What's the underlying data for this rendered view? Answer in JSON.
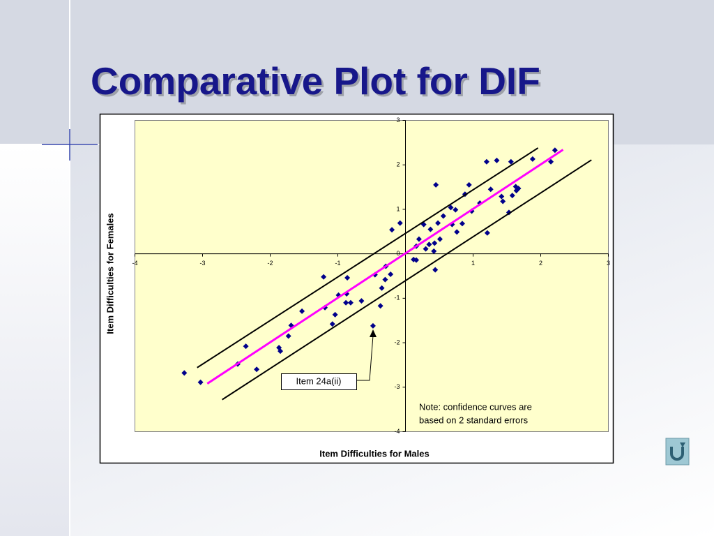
{
  "chart_data": {
    "type": "scatter",
    "title": "Comparative Plot for DIF",
    "x_label": "Item Difficulties for Males",
    "y_label": "Item Difficulties for Females",
    "xlim": [
      -4,
      3
    ],
    "ylim": [
      -4,
      3
    ],
    "xticks": [
      -4,
      -3,
      -2,
      -1,
      1,
      2,
      3
    ],
    "yticks": [
      -4,
      -3,
      -2,
      -1,
      0,
      1,
      2,
      3
    ],
    "series": [
      {
        "mode": "marker",
        "marker": "diamond",
        "color": "#00008b",
        "x": [
          -3.27,
          -3.03,
          -2.36,
          -2.48,
          -2.2,
          -1.87,
          -1.85,
          -1.73,
          -1.69,
          -1.53,
          -1.21,
          -1.19,
          -1.08,
          -1.04,
          -0.99,
          -0.86,
          -0.88,
          -0.81,
          -0.87,
          -0.65,
          -0.48,
          -0.45,
          -0.37,
          -0.35,
          -0.3,
          -0.29,
          -0.22,
          -0.2,
          -0.08,
          0.12,
          0.16,
          0.16,
          0.2,
          0.27,
          0.3,
          0.35,
          0.37,
          0.42,
          0.43,
          0.44,
          0.45,
          0.48,
          0.51,
          0.56,
          0.67,
          0.69,
          0.74,
          0.76,
          0.84,
          0.88,
          0.94,
          0.98,
          1.1,
          1.2,
          1.21,
          1.26,
          1.35,
          1.42,
          1.44,
          1.53,
          1.56,
          1.58,
          1.63,
          1.64,
          1.67,
          1.88,
          2.15,
          2.21
        ],
        "y": [
          -2.68,
          -2.89,
          -2.08,
          -2.48,
          -2.6,
          -2.11,
          -2.19,
          -1.85,
          -1.61,
          -1.29,
          -0.52,
          -1.21,
          -1.58,
          -1.37,
          -0.93,
          -0.54,
          -1.1,
          -1.1,
          -0.9,
          -1.06,
          -1.62,
          -0.47,
          -1.17,
          -0.77,
          -0.58,
          -0.28,
          -0.46,
          0.54,
          0.69,
          -0.13,
          -0.14,
          0.17,
          0.33,
          0.66,
          0.11,
          0.21,
          0.55,
          0.06,
          0.24,
          -0.36,
          1.55,
          0.69,
          0.33,
          0.85,
          1.04,
          0.66,
          0.99,
          0.49,
          0.68,
          1.34,
          1.55,
          0.96,
          1.14,
          2.07,
          0.47,
          1.45,
          2.1,
          1.29,
          1.18,
          0.93,
          2.07,
          1.31,
          1.51,
          1.42,
          1.47,
          2.13,
          2.07,
          2.33
        ]
      },
      {
        "mode": "line",
        "color": "#ff00ff",
        "width": 3,
        "x": [
          -2.93,
          2.33
        ],
        "y": [
          -2.92,
          2.34
        ]
      },
      {
        "mode": "line",
        "color": "#000000",
        "width": 2,
        "x": [
          -3.08,
          1.96
        ],
        "y": [
          -2.56,
          2.38
        ]
      },
      {
        "mode": "line",
        "color": "#000000",
        "width": 2,
        "x": [
          -2.71,
          2.75
        ],
        "y": [
          -3.28,
          2.11
        ]
      }
    ],
    "annotations": [
      {
        "text": "Item 24a(ii)"
      }
    ],
    "note": [
      "Note: confidence curves are",
      "based on 2 standard errors"
    ]
  }
}
